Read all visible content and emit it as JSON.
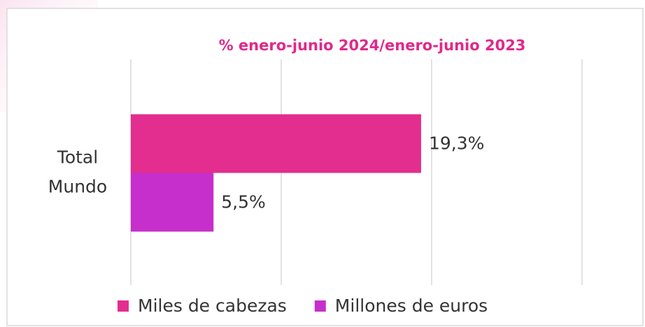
{
  "chart_data": {
    "type": "hbar",
    "title": "% enero-junio 2024/enero-junio 2023",
    "categories": [
      "Total Mundo"
    ],
    "series": [
      {
        "name": "Miles de cabezas",
        "color": "#e32d8f",
        "values": [
          19.3
        ],
        "value_labels": [
          "19,3%"
        ]
      },
      {
        "name": "Millones de euros",
        "color": "#c62fcb",
        "values": [
          5.5
        ],
        "value_labels": [
          "5,5%"
        ]
      }
    ],
    "xlim": [
      0,
      30
    ],
    "xticks": [
      0,
      10,
      20,
      30
    ],
    "grid": true,
    "legend": "bottom"
  }
}
